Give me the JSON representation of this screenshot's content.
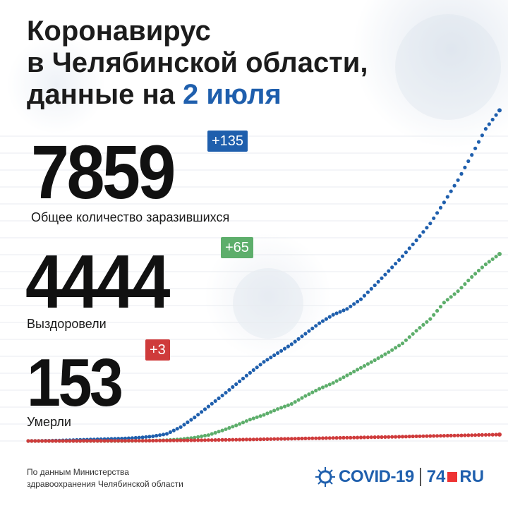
{
  "header": {
    "line1": "Коронавирус",
    "line2": "в Челябинской области,",
    "line3_prefix": "данные на ",
    "line3_date": "2 июля"
  },
  "stats": {
    "total": {
      "value": "7859",
      "delta": "+135",
      "label": "Общее количество заразившихся",
      "color": "#1f5fad"
    },
    "recovered": {
      "value": "4444",
      "delta": "+65",
      "label": "Выздоровели",
      "color": "#5dae6b"
    },
    "deaths": {
      "value": "153",
      "delta": "+3",
      "label": "Умерли",
      "color": "#cf3b3b"
    }
  },
  "footer": {
    "source_line1": "По данным Министерства",
    "source_line2": "здравоохранения Челябинской области",
    "logo_text": "COVID-19",
    "logo_74": "74",
    "logo_ru": "RU"
  },
  "chart_data": {
    "type": "line",
    "grid": true,
    "series": [
      {
        "key": "total",
        "color": "#1f5fad",
        "values": [
          0,
          5,
          10,
          20,
          30,
          40,
          50,
          60,
          80,
          110,
          170,
          330,
          560,
          820,
          1080,
          1350,
          1620,
          1880,
          2090,
          2300,
          2550,
          2800,
          3000,
          3140,
          3370,
          3700,
          4040,
          4390,
          4770,
          5170,
          5670,
          6200,
          6800,
          7420,
          7859
        ]
      },
      {
        "key": "recovered",
        "color": "#5dae6b",
        "values": [
          0,
          0,
          0,
          0,
          0,
          0,
          0,
          0,
          5,
          10,
          20,
          40,
          80,
          140,
          250,
          370,
          510,
          620,
          760,
          880,
          1070,
          1240,
          1380,
          1560,
          1740,
          1920,
          2110,
          2320,
          2620,
          2900,
          3290,
          3560,
          3900,
          4200,
          4444
        ]
      },
      {
        "key": "deaths",
        "color": "#cf3b3b",
        "values": [
          0,
          0,
          0,
          0,
          1,
          2,
          3,
          4,
          5,
          7,
          10,
          13,
          17,
          21,
          26,
          31,
          36,
          42,
          48,
          54,
          60,
          66,
          72,
          78,
          84,
          90,
          96,
          103,
          110,
          117,
          124,
          131,
          138,
          146,
          153
        ]
      }
    ],
    "ylim": [
      0,
      8000
    ]
  }
}
